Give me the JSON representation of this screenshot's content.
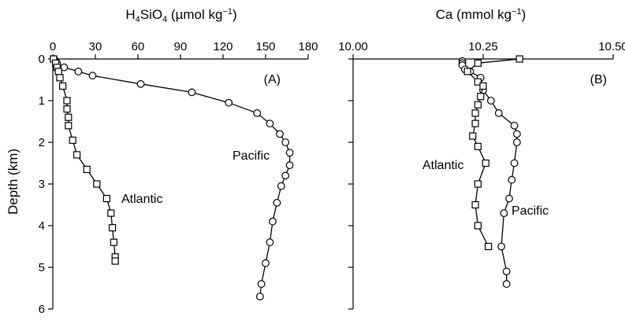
{
  "chart_data": [
    {
      "type": "scatter",
      "panel": "(A)",
      "title_main": "H",
      "title_sub1": "4",
      "title_mid": "SiO",
      "title_sub2": "4",
      "title_unit": " (µmol kg",
      "title_sup": "−1",
      "title_end": ")",
      "ylabel": "Depth (km)",
      "xlim": [
        0,
        180
      ],
      "ylim": [
        0,
        6
      ],
      "y_inverted": true,
      "x_axis_position": "top",
      "xticks": [
        "0",
        "30",
        "60",
        "90",
        "120",
        "150",
        "180"
      ],
      "yticks": [
        "0",
        "1",
        "2",
        "3",
        "4",
        "5",
        "6"
      ],
      "series": [
        {
          "name": "Pacific",
          "marker": "circle",
          "points": [
            [
              1,
              0.0
            ],
            [
              3,
              0.1
            ],
            [
              8,
              0.2
            ],
            [
              18,
              0.3
            ],
            [
              28,
              0.4
            ],
            [
              62,
              0.6
            ],
            [
              98,
              0.8
            ],
            [
              124,
              1.05
            ],
            [
              144,
              1.3
            ],
            [
              153,
              1.55
            ],
            [
              160,
              1.8
            ],
            [
              164,
              2.0
            ],
            [
              167,
              2.25
            ],
            [
              167,
              2.55
            ],
            [
              164,
              2.8
            ],
            [
              161,
              3.05
            ],
            [
              158,
              3.45
            ],
            [
              155,
              3.9
            ],
            [
              153,
              4.4
            ],
            [
              150,
              4.9
            ],
            [
              147,
              5.4
            ],
            [
              146,
              5.7
            ]
          ]
        },
        {
          "name": "Atlantic",
          "marker": "square",
          "points": [
            [
              0.5,
              0.0
            ],
            [
              2,
              0.1
            ],
            [
              3,
              0.2
            ],
            [
              4,
              0.3
            ],
            [
              5,
              0.45
            ],
            [
              7,
              0.65
            ],
            [
              10,
              1.0
            ],
            [
              10,
              1.2
            ],
            [
              11,
              1.4
            ],
            [
              11,
              1.6
            ],
            [
              14,
              1.95
            ],
            [
              17,
              2.3
            ],
            [
              24,
              2.65
            ],
            [
              31,
              3.0
            ],
            [
              38,
              3.35
            ],
            [
              41,
              3.7
            ],
            [
              42,
              4.05
            ],
            [
              43,
              4.4
            ],
            [
              44,
              4.75
            ],
            [
              44,
              4.85
            ]
          ]
        }
      ]
    },
    {
      "type": "scatter",
      "panel": "(B)",
      "title_main": "Ca (mmol kg",
      "title_sup": "−1",
      "title_end": ")",
      "ylabel": "",
      "xlim": [
        10.0,
        10.5
      ],
      "ylim": [
        0,
        6
      ],
      "y_inverted": true,
      "x_axis_position": "top",
      "xticks": [
        "10.00",
        "10.25",
        "10.50"
      ],
      "series": [
        {
          "name": "Pacific",
          "marker": "circle",
          "points": [
            [
              10.21,
              0.05
            ],
            [
              10.21,
              0.1
            ],
            [
              10.21,
              0.15
            ],
            [
              10.215,
              0.25
            ],
            [
              10.225,
              0.3
            ],
            [
              10.245,
              0.45
            ],
            [
              10.25,
              0.75
            ],
            [
              10.265,
              1.0
            ],
            [
              10.28,
              1.3
            ],
            [
              10.31,
              1.6
            ],
            [
              10.315,
              1.8
            ],
            [
              10.315,
              2.0
            ],
            [
              10.31,
              2.5
            ],
            [
              10.305,
              2.9
            ],
            [
              10.3,
              3.35
            ],
            [
              10.29,
              3.7
            ],
            [
              10.285,
              4.5
            ],
            [
              10.295,
              5.1
            ],
            [
              10.295,
              5.4
            ]
          ]
        },
        {
          "name": "Atlantic",
          "marker": "square",
          "points": [
            [
              10.32,
              0.0
            ],
            [
              10.24,
              0.1
            ],
            [
              10.22,
              0.3
            ],
            [
              10.24,
              0.55
            ],
            [
              10.25,
              0.65
            ],
            [
              10.245,
              0.9
            ],
            [
              10.24,
              1.1
            ],
            [
              10.235,
              1.3
            ],
            [
              10.235,
              1.55
            ],
            [
              10.23,
              1.85
            ],
            [
              10.24,
              2.1
            ],
            [
              10.255,
              2.5
            ],
            [
              10.24,
              3.0
            ],
            [
              10.235,
              3.5
            ],
            [
              10.24,
              4.0
            ],
            [
              10.26,
              4.5
            ]
          ]
        }
      ]
    }
  ]
}
